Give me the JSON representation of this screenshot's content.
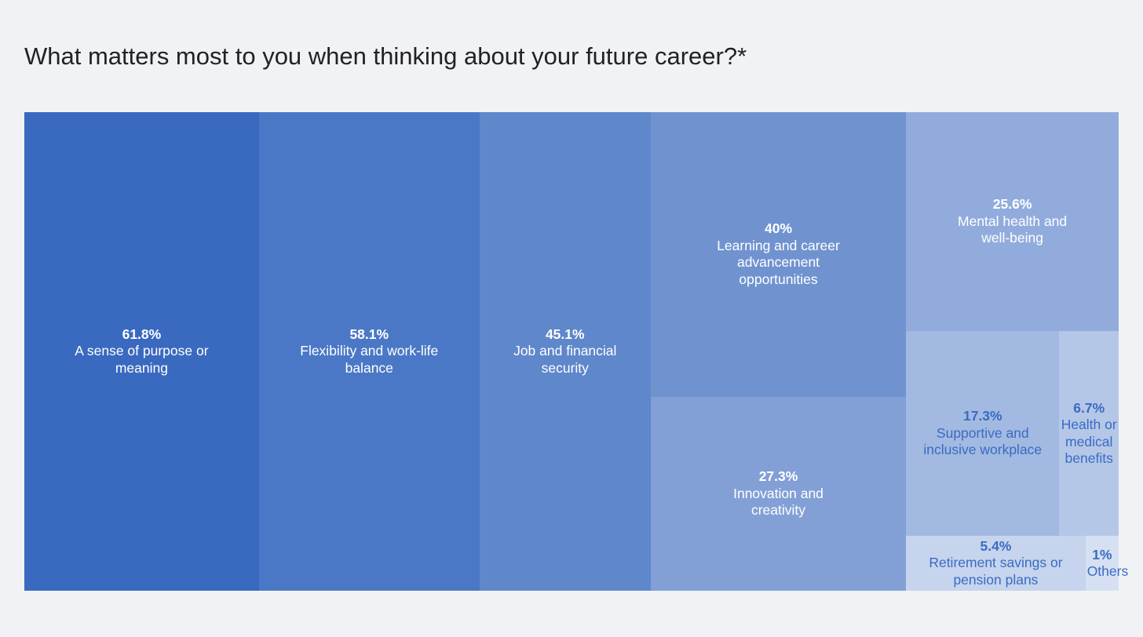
{
  "chart_data": {
    "type": "treemap",
    "title": "What matters most to you when thinking about your future career?*",
    "categories": [
      "A sense of purpose or meaning",
      "Flexibility and work-life balance",
      "Job and financial security",
      "Learning and career advancement opportunities",
      "Innovation and creativity",
      "Mental health and well-being",
      "Supportive and inclusive workplace",
      "Health or medical benefits",
      "Retirement savings or pension plans",
      "Others"
    ],
    "values": [
      61.8,
      58.1,
      45.1,
      40,
      27.3,
      25.6,
      17.3,
      6.7,
      5.4,
      1
    ],
    "value_labels": [
      "61.8%",
      "58.1%",
      "45.1%",
      "40%",
      "27.3%",
      "25.6%",
      "17.3%",
      "6.7%",
      "5.4%",
      "1%"
    ],
    "colors": [
      "#3a69c0",
      "#4b78c6",
      "#5f87cb",
      "#7093d0",
      "#82a0d6",
      "#91acdc",
      "#a2b9e1",
      "#b5c7e7",
      "#c6d4ed",
      "#d5e0f2"
    ]
  }
}
